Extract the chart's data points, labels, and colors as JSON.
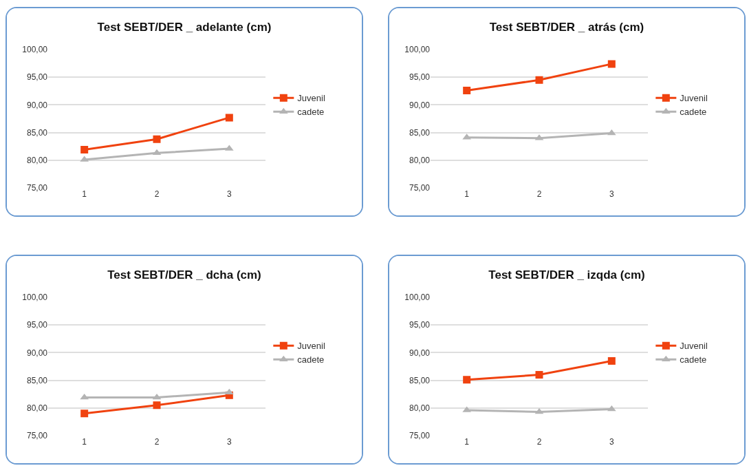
{
  "chart_data": [
    {
      "type": "line",
      "title": "Test SEBT/DER _ adelante (cm)",
      "categories": [
        "1",
        "2",
        "3"
      ],
      "series": [
        {
          "name": "Juvenil",
          "color": "#f0420f",
          "marker": "square",
          "values": [
            81.9,
            83.8,
            87.7
          ]
        },
        {
          "name": "cadete",
          "color": "#b4b4b4",
          "marker": "triangle",
          "values": [
            80.1,
            81.3,
            82.1
          ]
        }
      ],
      "ylim": [
        75,
        100
      ],
      "yticks": [
        {
          "value": 75,
          "label": "75,00"
        },
        {
          "value": 80,
          "label": "80,00"
        },
        {
          "value": 85,
          "label": "85,00"
        },
        {
          "value": 90,
          "label": "90,00"
        },
        {
          "value": 95,
          "label": "95,00"
        },
        {
          "value": 100,
          "label": "100,00"
        }
      ],
      "grid": "y",
      "legend": "right"
    },
    {
      "type": "line",
      "title": "Test SEBT/DER _ atrás (cm)",
      "categories": [
        "1",
        "2",
        "3"
      ],
      "series": [
        {
          "name": "Juvenil",
          "color": "#f0420f",
          "marker": "square",
          "values": [
            92.6,
            94.5,
            97.4
          ]
        },
        {
          "name": "cadete",
          "color": "#b4b4b4",
          "marker": "triangle",
          "values": [
            84.1,
            84.0,
            84.9
          ]
        }
      ],
      "ylim": [
        75,
        100
      ],
      "yticks": [
        {
          "value": 75,
          "label": "75,00"
        },
        {
          "value": 80,
          "label": "80,00"
        },
        {
          "value": 85,
          "label": "85,00"
        },
        {
          "value": 90,
          "label": "90,00"
        },
        {
          "value": 95,
          "label": "95,00"
        },
        {
          "value": 100,
          "label": "100,00"
        }
      ],
      "grid": "y",
      "legend": "right"
    },
    {
      "type": "line",
      "title": "Test SEBT/DER _ dcha (cm)",
      "categories": [
        "1",
        "2",
        "3"
      ],
      "series": [
        {
          "name": "Juvenil",
          "color": "#f0420f",
          "marker": "square",
          "values": [
            79.0,
            80.5,
            82.3
          ]
        },
        {
          "name": "cadete",
          "color": "#b4b4b4",
          "marker": "triangle",
          "values": [
            81.9,
            81.9,
            82.8
          ]
        }
      ],
      "ylim": [
        75,
        100
      ],
      "yticks": [
        {
          "value": 75,
          "label": "75,00"
        },
        {
          "value": 80,
          "label": "80,00"
        },
        {
          "value": 85,
          "label": "85,00"
        },
        {
          "value": 90,
          "label": "90,00"
        },
        {
          "value": 95,
          "label": "95,00"
        },
        {
          "value": 100,
          "label": "100,00"
        }
      ],
      "grid": "y",
      "legend": "right"
    },
    {
      "type": "line",
      "title": "Test SEBT/DER _ izqda (cm)",
      "categories": [
        "1",
        "2",
        "3"
      ],
      "series": [
        {
          "name": "Juvenil",
          "color": "#f0420f",
          "marker": "square",
          "values": [
            85.1,
            86.0,
            88.5
          ]
        },
        {
          "name": "cadete",
          "color": "#b4b4b4",
          "marker": "triangle",
          "values": [
            79.6,
            79.3,
            79.8
          ]
        }
      ],
      "ylim": [
        75,
        100
      ],
      "yticks": [
        {
          "value": 75,
          "label": "75,00"
        },
        {
          "value": 80,
          "label": "80,00"
        },
        {
          "value": 85,
          "label": "85,00"
        },
        {
          "value": 90,
          "label": "90,00"
        },
        {
          "value": 95,
          "label": "95,00"
        },
        {
          "value": 100,
          "label": "100,00"
        }
      ],
      "grid": "y",
      "legend": "right"
    }
  ]
}
